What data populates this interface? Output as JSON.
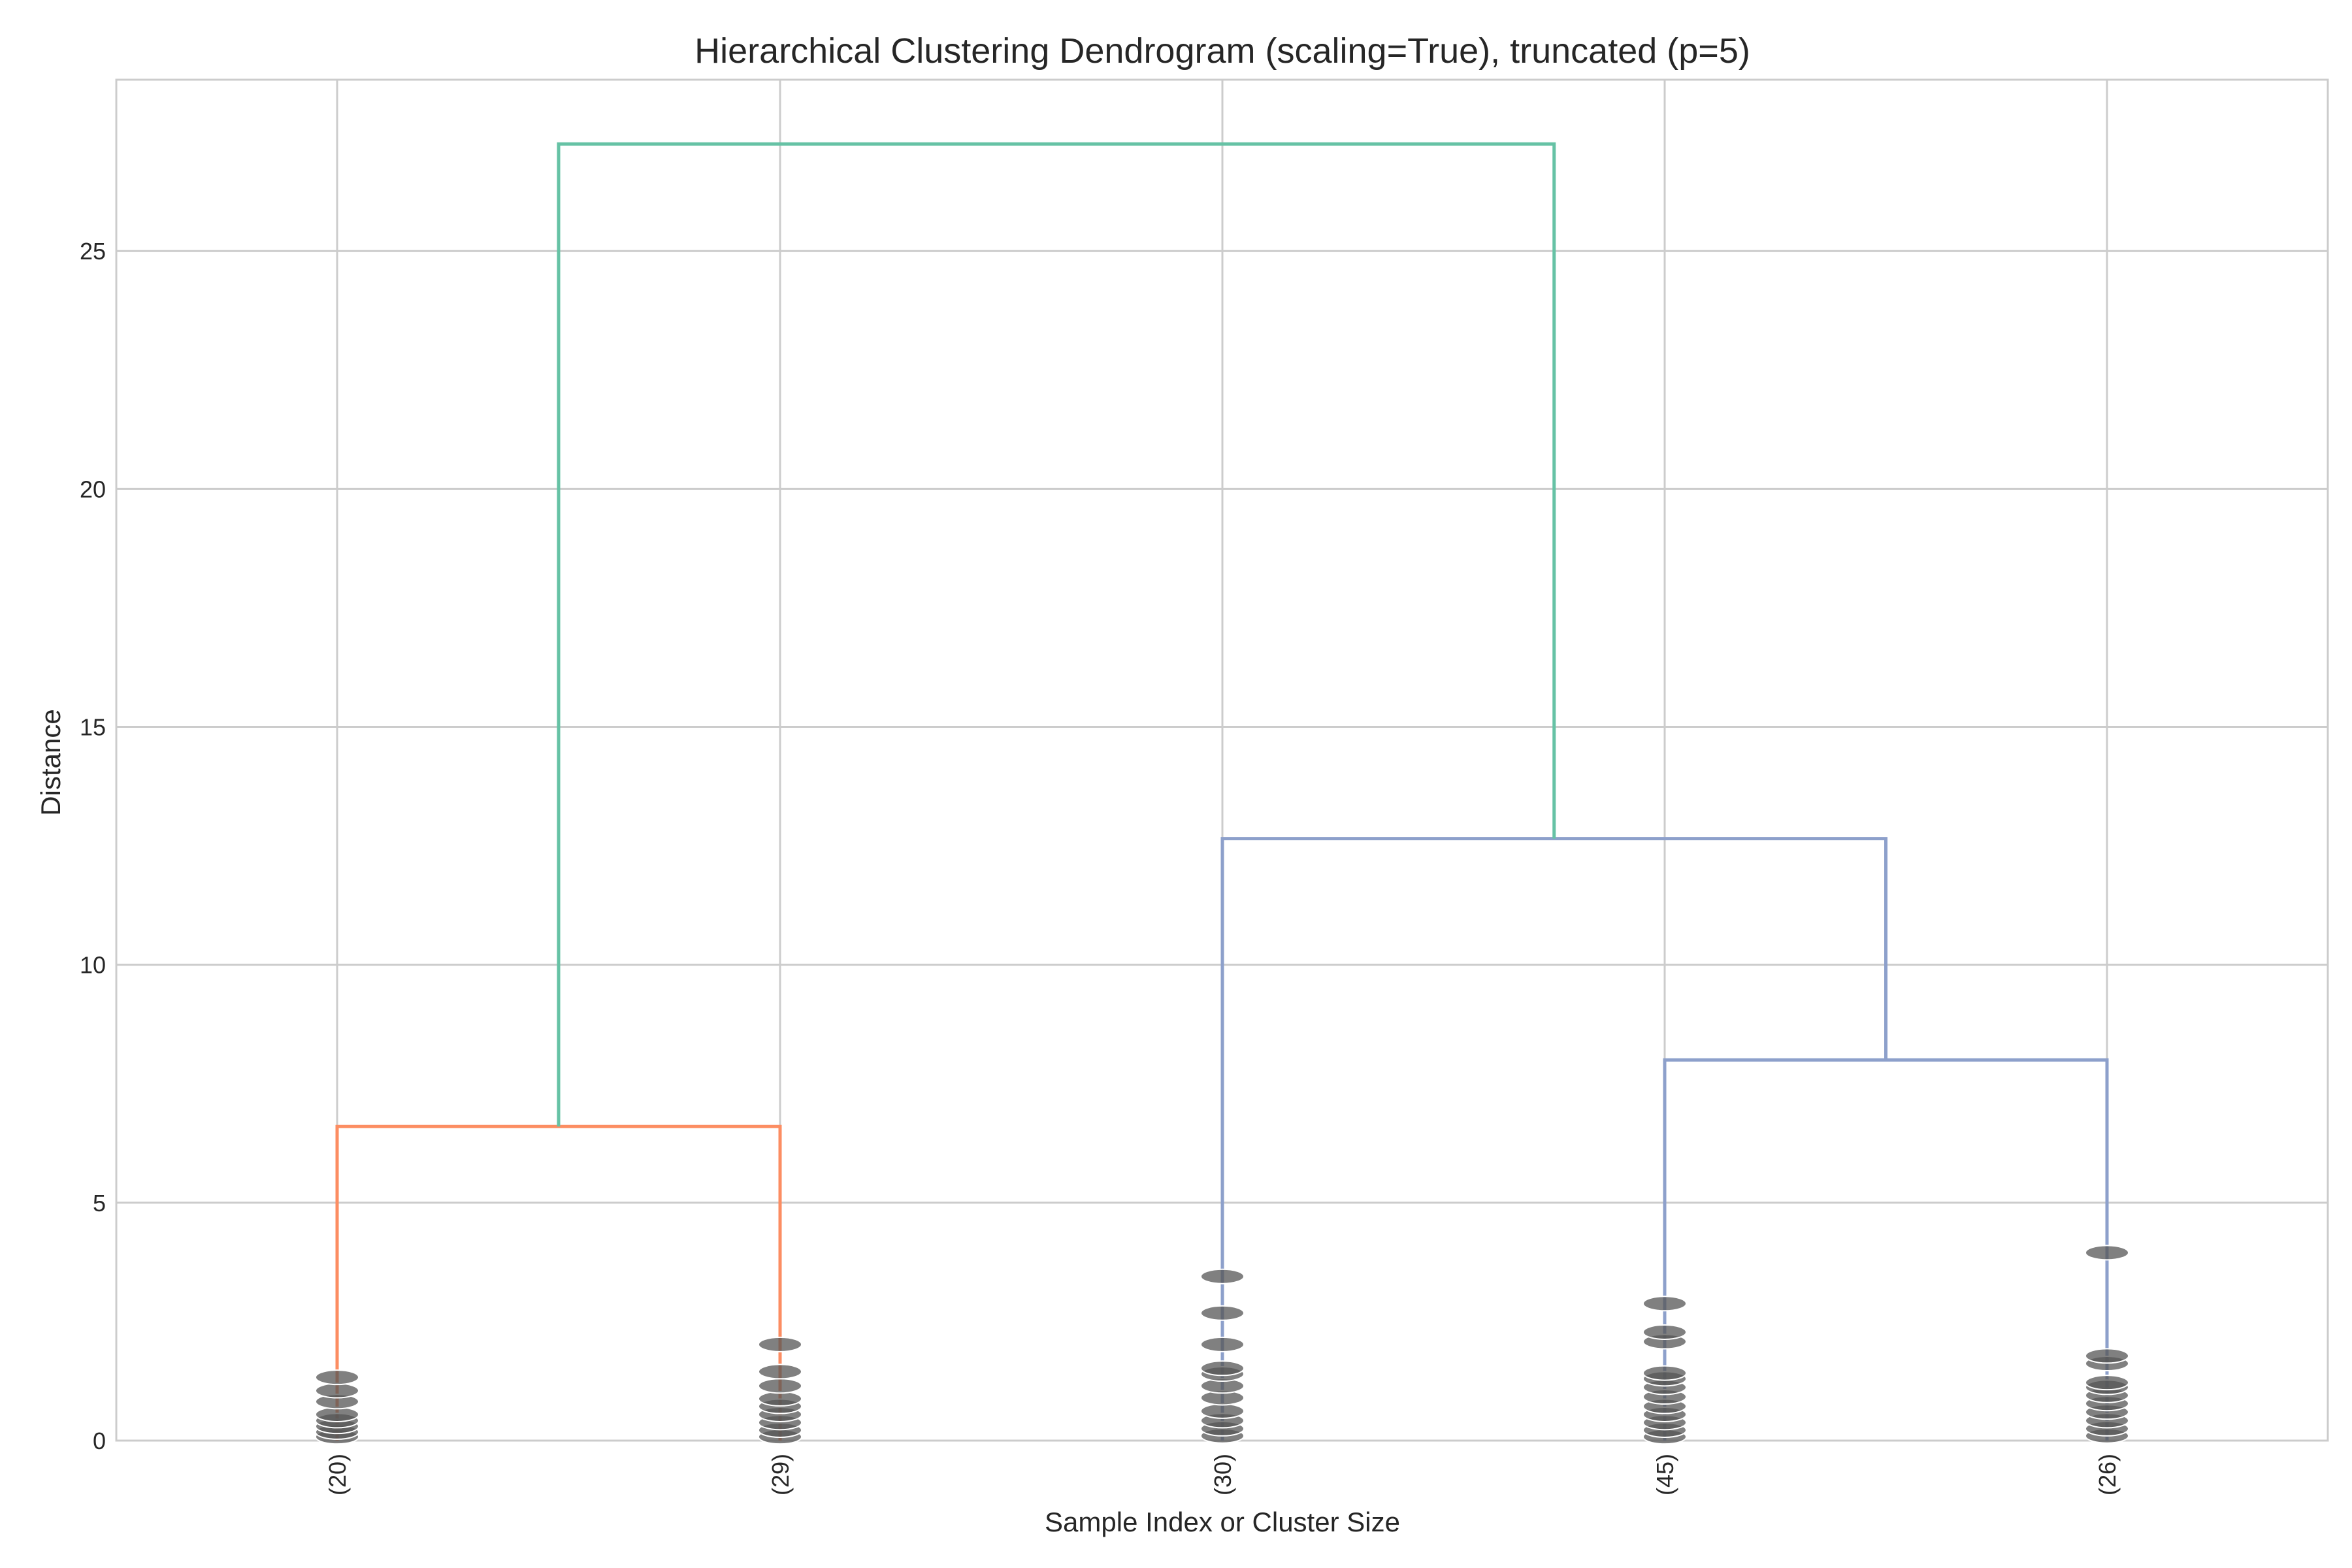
{
  "chart_data": {
    "type": "dendrogram",
    "title": "Hierarchical Clustering Dendrogram (scaling=True), truncated (p=5)",
    "xlabel": "Sample Index or Cluster Size",
    "ylabel": "Distance",
    "ylim": [
      0,
      28.6
    ],
    "yticks": [
      0,
      5,
      10,
      15,
      20,
      25
    ],
    "grid": true,
    "leaves": [
      {
        "label": "(20)",
        "heights": [
          0.08,
          0.18,
          0.3,
          0.42,
          0.55,
          0.82,
          1.05,
          1.33
        ]
      },
      {
        "label": "(29)",
        "heights": [
          0.08,
          0.22,
          0.38,
          0.55,
          0.72,
          0.88,
          1.15,
          1.45,
          2.02
        ]
      },
      {
        "label": "(30)",
        "heights": [
          0.1,
          0.25,
          0.42,
          0.62,
          0.9,
          1.15,
          1.4,
          1.52,
          2.02,
          2.68,
          3.45
        ]
      },
      {
        "label": "(45)",
        "heights": [
          0.08,
          0.22,
          0.38,
          0.55,
          0.72,
          0.92,
          1.12,
          1.3,
          1.42,
          2.08,
          2.28,
          2.88
        ]
      },
      {
        "label": "(26)",
        "heights": [
          0.1,
          0.25,
          0.42,
          0.6,
          0.78,
          0.95,
          1.12,
          1.22,
          1.62,
          1.78,
          3.95
        ]
      }
    ],
    "links": [
      {
        "left": 0,
        "right": 1,
        "height": 6.6,
        "color": "#fc8d62"
      },
      {
        "left": 3,
        "right": 4,
        "height": 8.0,
        "color": "#8da0cb"
      },
      {
        "left": 2,
        "right": "n2",
        "height": 12.65,
        "color": "#8da0cb"
      },
      {
        "left": "n1",
        "right": "n3",
        "height": 27.25,
        "color": "#66c2a5"
      }
    ],
    "colors": {
      "grid": "#cccccc",
      "spine": "#cccccc",
      "marker": "#555555",
      "text": "#262626"
    }
  }
}
